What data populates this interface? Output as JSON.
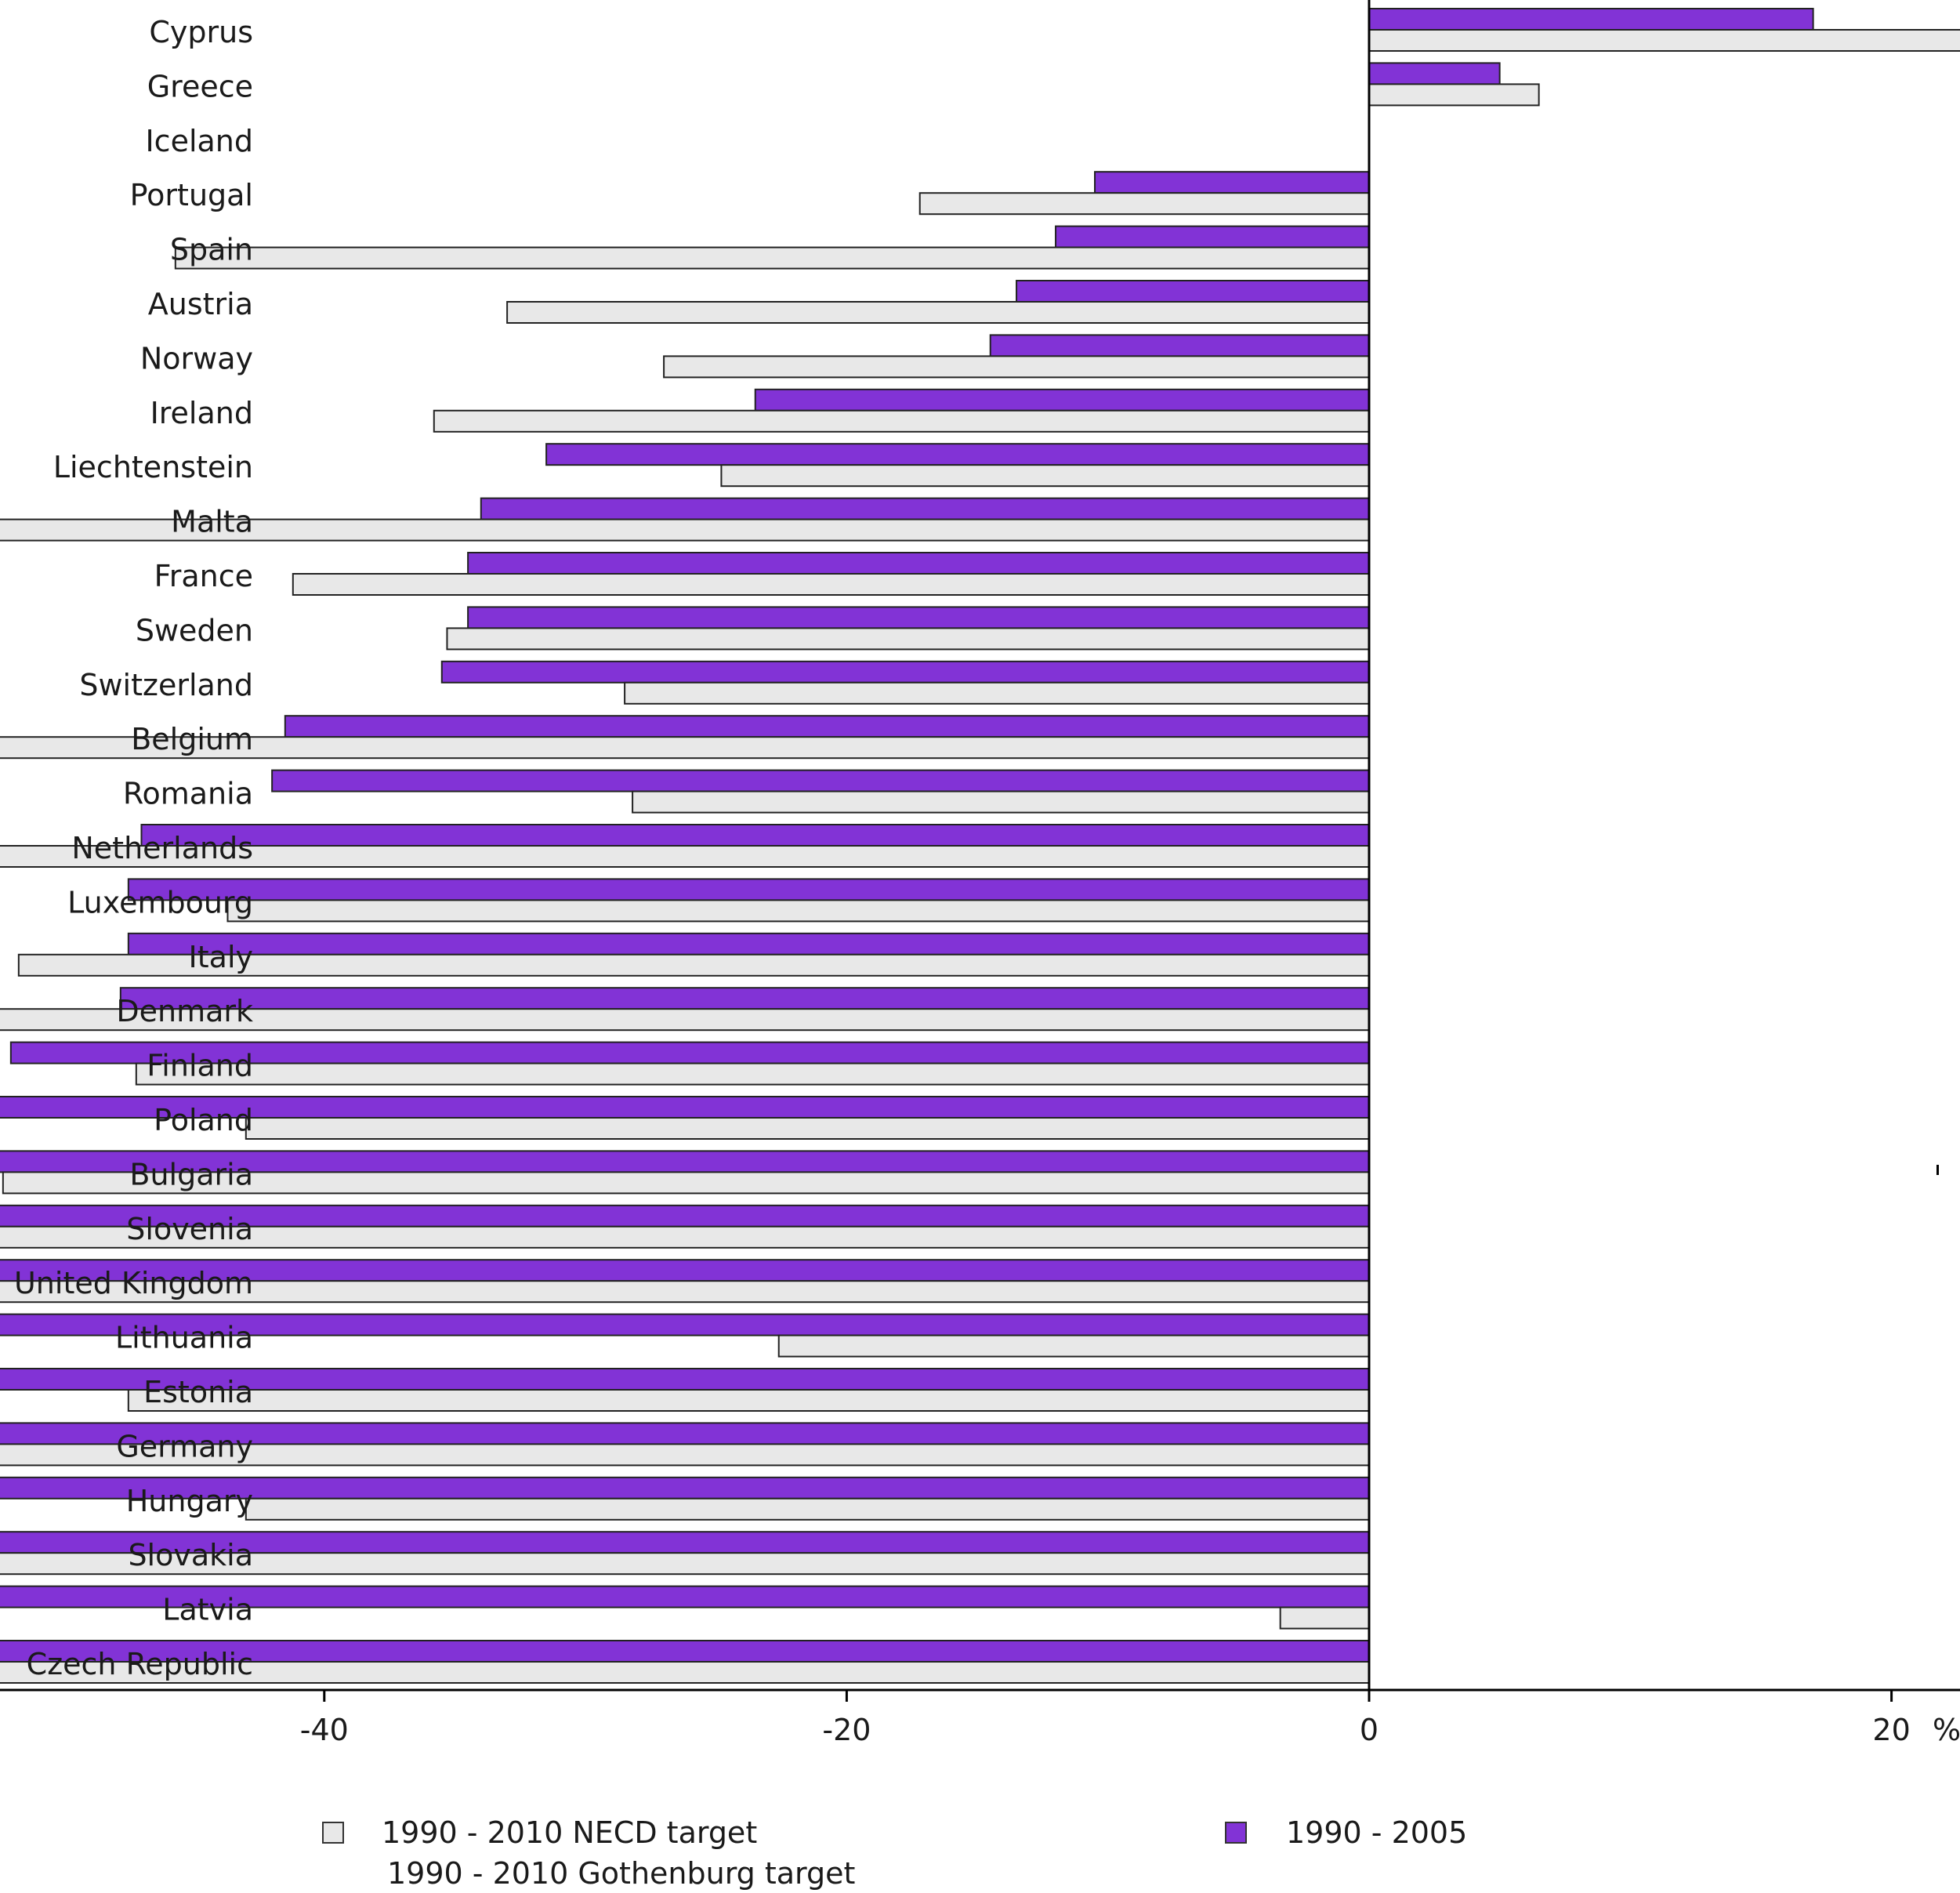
{
  "chart_data": {
    "type": "bar",
    "orientation": "horizontal",
    "unit": "%",
    "xlim": [
      -80,
      40
    ],
    "xticks": [
      -80,
      -60,
      -40,
      -20,
      0,
      20,
      40
    ],
    "categories": [
      "Cyprus",
      "Greece",
      "Iceland",
      "Portugal",
      "Spain",
      "Austria",
      "Norway",
      "Ireland",
      "Liechtenstein",
      "Malta",
      "France",
      "Sweden",
      "Switzerland",
      "Belgium",
      "Romania",
      "Netherlands",
      "Luxembourg",
      "Italy",
      "Denmark",
      "Finland",
      "Poland",
      "Bulgaria",
      "Slovenia",
      "United Kingdom",
      "Lithuania",
      "Estonia",
      "Germany",
      "Hungary",
      "Slovakia",
      "Latvia",
      "Czech Republic"
    ],
    "series": [
      {
        "name": "1990 - 2005",
        "color": "#8233d6",
        "values": [
          17,
          5,
          null,
          -10.5,
          -12,
          -13.5,
          -14.5,
          -23.5,
          -31.5,
          -34,
          -34.5,
          -34.5,
          -35.5,
          -41.5,
          -42,
          -47,
          -47.5,
          -47.5,
          -47.8,
          -52,
          -52.5,
          -54,
          -59,
          -62.5,
          -67.8,
          -69,
          -69,
          -70.5,
          -74.5,
          -75,
          -79
        ]
      },
      {
        "name": "1990 - 2010 NECD target",
        "color": "#e8e8e8",
        "values": [
          30.5,
          6.5,
          null,
          -17.2,
          -45.7,
          -33,
          -27,
          -35.8,
          -24.8,
          -52.8,
          -41.2,
          -35.3,
          -28.5,
          -57,
          -28.2,
          -55,
          -43.7,
          -51.7,
          -56,
          -47.2,
          -43,
          -52.3,
          -66.3,
          -70,
          -22.6,
          -47.5,
          -74,
          -43,
          -66,
          -3.4,
          -76.2
        ]
      }
    ],
    "legend": [
      {
        "label": "1990 - 2010 NECD target",
        "color": "#e8e8e8"
      },
      {
        "label": "1990 - 2010 Gothenburg target",
        "color": "none"
      },
      {
        "label": "1990 - 2005",
        "color": "#8233d6"
      }
    ],
    "axis_unit_label": "%"
  }
}
